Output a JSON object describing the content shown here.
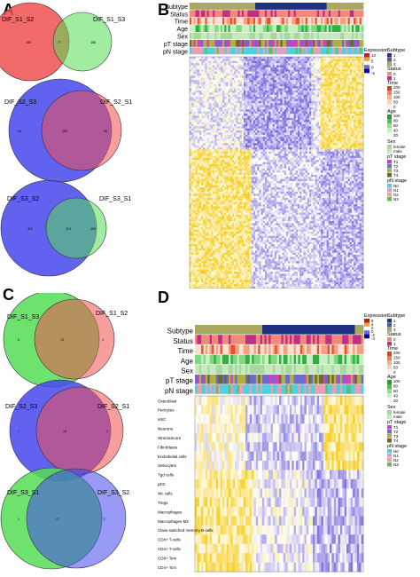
{
  "panels": {
    "a": "A",
    "b": "B",
    "c": "C",
    "d": "D"
  },
  "venn_a": [
    {
      "left": "DIF_S1_S2",
      "right": "DIF_S1_S3",
      "l_color": "#f05050",
      "r_color": "#55dd55",
      "l_count": "155",
      "mid_count": "77",
      "r_count": "188"
    },
    {
      "left": "DIF_S2_S3",
      "right": "DIF_S2_S1",
      "l_color": "#4646ee",
      "r_color": "#f05050",
      "l_count": "111",
      "mid_count": "283",
      "r_count": "56"
    },
    {
      "left": "DIF_S3_S2",
      "right": "DIF_S3_S1",
      "l_color": "#4646ee",
      "r_color": "#55dd55",
      "l_count": "311",
      "mid_count": "113",
      "r_count": "109"
    }
  ],
  "venn_c": [
    {
      "left": "DIF_S1_S3",
      "right": "DIF_S1_S2",
      "l_color": "#55dd55",
      "r_color": "#f05050",
      "l_count": "5",
      "mid_count": "13",
      "r_count": "4"
    },
    {
      "left": "DIF_S2_S3",
      "right": "DIF_S2_S1",
      "l_color": "#4646ee",
      "r_color": "#f05050",
      "l_count": "7",
      "mid_count": "16",
      "r_count": "1"
    },
    {
      "left": "DIF_S3_S1",
      "right": "DIF_S3_S2",
      "l_color": "#55dd55",
      "r_color": "#4646ee",
      "l_count": "1",
      "mid_count": "17",
      "r_count": "2"
    }
  ],
  "heatmap_b": {
    "tracks": [
      "Subtype",
      "Status",
      "Time",
      "Age",
      "Sex",
      "pT stage",
      "pN stage"
    ],
    "legend": {
      "expression_title": "Expression",
      "expression_ticks": [
        "10",
        "5",
        "0",
        "-5"
      ],
      "subtype_title": "Subtype",
      "subtype_items": [
        "1",
        "2",
        "3"
      ],
      "status_title": "Status",
      "status_items": [
        "0",
        "1"
      ],
      "time_title": "Time",
      "time_ticks": [
        "200",
        "150",
        "100",
        "50",
        "0"
      ],
      "age_title": "Age",
      "age_ticks": [
        "100",
        "80",
        "60",
        "40",
        "20"
      ],
      "sex_title": "Sex",
      "sex_items": [
        "female",
        "male"
      ],
      "pt_title": "pT stage",
      "pt_items": [
        "T1",
        "T2",
        "T3",
        "T4"
      ],
      "pn_title": "pN stage",
      "pn_items": [
        "N0",
        "N1",
        "N2",
        "N3"
      ]
    }
  },
  "heatmap_d": {
    "tracks": [
      "Subtype",
      "Status",
      "Time",
      "Age",
      "Sex",
      "pT stage",
      "pN stage"
    ],
    "rows": [
      "Osteoblast",
      "Pericytes",
      "HSC",
      "Neurons",
      "StromaScore",
      "Fibroblasts",
      "Endothelial cells",
      "Sebocytes",
      "Tgd cells",
      "pDC",
      "NK cells",
      "Tregs",
      "Macrophages",
      "Macrophages M2",
      "Class-switched memory B-cells",
      "CD8+ T-cells",
      "CD4+ T-cells",
      "CD8+ Tem",
      "CD4+ Tcm"
    ],
    "legend": {
      "expression_title": "Expression",
      "expression_ticks": [
        "6",
        "4",
        "2",
        "0",
        "-2",
        "-4"
      ],
      "subtype_title": "Subtype",
      "subtype_items": [
        "1",
        "2",
        "3"
      ],
      "status_title": "Status",
      "status_items": [
        "0",
        "1"
      ],
      "time_title": "Time",
      "time_ticks": [
        "200",
        "150",
        "100",
        "50",
        "0"
      ],
      "age_title": "Age",
      "age_ticks": [
        "100",
        "80",
        "60",
        "40",
        "20"
      ],
      "sex_title": "Sex",
      "sex_items": [
        "female",
        "male"
      ],
      "pt_title": "pT stage",
      "pt_items": [
        "T1",
        "T2",
        "T3",
        "T4"
      ],
      "pn_title": "pN stage",
      "pn_items": [
        "N0",
        "N1",
        "N2",
        "N3"
      ]
    }
  },
  "colors": {
    "subtype": [
      "#203080",
      "#5058a0",
      "#a8a860"
    ],
    "status": [
      "#ef8a7a",
      "#c03080"
    ],
    "pt": [
      "#d040c0",
      "#6a6ad0",
      "#b0b040",
      "#6a6a30"
    ],
    "pn": [
      "#4fd0e0",
      "#e0a0c0",
      "#f0a0a0",
      "#60c060"
    ],
    "sex": [
      "#a8d8a0",
      "#c8e8c0"
    ],
    "hi": "#f5d020",
    "lo": "#7060d0"
  }
}
